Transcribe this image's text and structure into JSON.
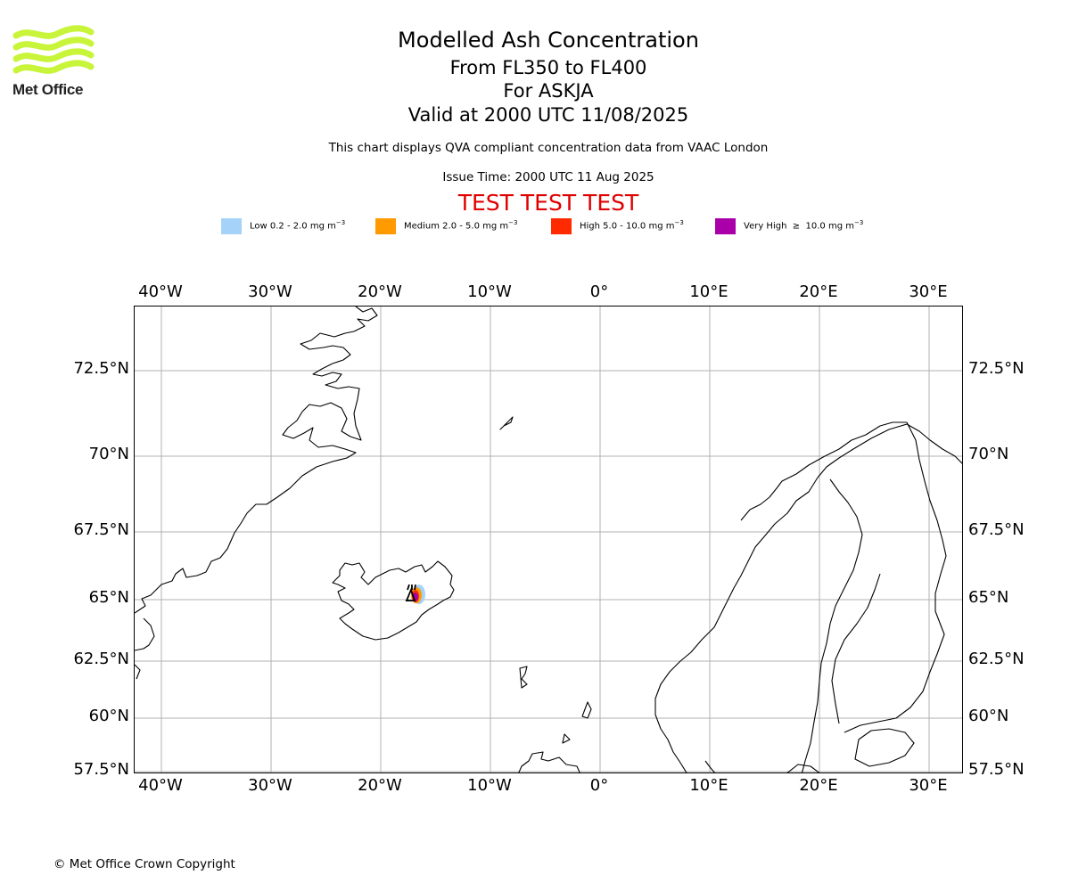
{
  "logo": {
    "text": "Met Office",
    "color": "#c8f53a"
  },
  "header": {
    "title": "Modelled Ash Concentration",
    "levels": "From FL350 to FL400",
    "volcano": "For ASKJA",
    "valid": "Valid at 2000 UTC 11/08/2025",
    "description": "This chart displays QVA compliant concentration data from VAAC London",
    "issue_time": "Issue Time: 2000 UTC 11 Aug 2025",
    "test_banner": "TEST TEST TEST",
    "test_color": "#e00000"
  },
  "legend": [
    {
      "label": "Low 0.2 - 2.0 mg m",
      "unit_exp": "−3",
      "color": "#a5d2f8"
    },
    {
      "label": "Medium 2.0 - 5.0 mg m",
      "unit_exp": "−3",
      "color": "#ff9a00"
    },
    {
      "label": "High 5.0 - 10.0 mg m",
      "unit_exp": "−3",
      "color": "#ff2a00"
    },
    {
      "label": "Very High  ≥  10.0 mg m",
      "unit_exp": "−3",
      "color": "#aa00aa"
    }
  ],
  "axes": {
    "lon_labels": [
      "40°W",
      "30°W",
      "20°W",
      "10°W",
      "0°",
      "10°E",
      "20°E",
      "30°E"
    ],
    "lat_labels": [
      "72.5°N",
      "70°N",
      "67.5°N",
      "65°N",
      "62.5°N",
      "60°N",
      "57.5°N"
    ]
  },
  "map": {
    "volcano_name": "ASKJA",
    "volcano_lat": 65.03,
    "volcano_lon": -16.75
  },
  "footer": {
    "copyright": "© Met Office Crown Copyright"
  }
}
